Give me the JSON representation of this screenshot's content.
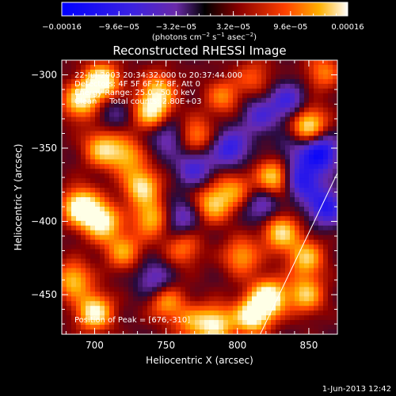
{
  "chart_data": {
    "type": "heatmap",
    "title": "Reconstructed RHESSI Image",
    "xlabel": "Heliocentric X (arcsec)",
    "ylabel": "Heliocentric Y (arcsec)",
    "xlim": [
      677,
      870
    ],
    "ylim": [
      -477,
      -290
    ],
    "x_ticks": [
      {
        "v": 700,
        "label": "700"
      },
      {
        "v": 750,
        "label": "750"
      },
      {
        "v": 800,
        "label": "800"
      },
      {
        "v": 850,
        "label": "850"
      }
    ],
    "y_ticks": [
      {
        "v": -300,
        "label": "−300"
      },
      {
        "v": -350,
        "label": "−350"
      },
      {
        "v": -400,
        "label": "−400"
      },
      {
        "v": -450,
        "label": "−450"
      }
    ],
    "colorbar": {
      "range": [
        -0.00016,
        0.00016
      ],
      "tick_values": [
        -0.00016,
        -9.6e-05,
        -3.2e-05,
        3.2e-05,
        9.6e-05,
        0.00016
      ],
      "tick_labels": [
        "−0.00016",
        "−9.6e−05",
        "−3.2e−05",
        "3.2e−05",
        "9.6e−05",
        "0.00016"
      ],
      "unit_prefix": "(photons cm",
      "unit_exp1": "−2",
      "unit_mid": " s",
      "unit_exp2": "−1",
      "unit_mid2": " asec",
      "unit_exp3": "−2",
      "unit_suffix": ")"
    },
    "annotations": [
      "22-Jul-2003 20:34:32.000 to 20:37:44.000",
      "Detectors: 4F 5F 6F 7F 8F, Att 0",
      "Energy Range: 25.0 - 50.0 keV",
      "Clean     Total counts: 2.80E+03"
    ],
    "peak_label": "Position of Peak = [676,-310]",
    "limb": [
      [
        870,
        -367
      ],
      [
        816,
        -477
      ]
    ],
    "blobs": [
      {
        "x": 705,
        "y": -305,
        "v": 1.0
      },
      {
        "x": 690,
        "y": -318,
        "v": 0.8
      },
      {
        "x": 705,
        "y": -350,
        "v": 0.7
      },
      {
        "x": 690,
        "y": -390,
        "v": 1.0
      },
      {
        "x": 705,
        "y": -400,
        "v": 0.9
      },
      {
        "x": 720,
        "y": -420,
        "v": 0.6
      },
      {
        "x": 685,
        "y": -440,
        "v": 0.7
      },
      {
        "x": 700,
        "y": -462,
        "v": 0.9
      },
      {
        "x": 722,
        "y": -355,
        "v": 0.6
      },
      {
        "x": 740,
        "y": -325,
        "v": 0.8
      },
      {
        "x": 745,
        "y": -310,
        "v": 0.6
      },
      {
        "x": 733,
        "y": -376,
        "v": 0.8
      },
      {
        "x": 740,
        "y": -398,
        "v": 0.7
      },
      {
        "x": 762,
        "y": -418,
        "v": 0.5
      },
      {
        "x": 750,
        "y": -455,
        "v": 0.6
      },
      {
        "x": 768,
        "y": -470,
        "v": 0.5
      },
      {
        "x": 785,
        "y": -470,
        "v": 0.8
      },
      {
        "x": 810,
        "y": -465,
        "v": 0.9
      },
      {
        "x": 822,
        "y": -452,
        "v": 1.0
      },
      {
        "x": 848,
        "y": -450,
        "v": 0.7
      },
      {
        "x": 848,
        "y": -425,
        "v": 0.7
      },
      {
        "x": 783,
        "y": -388,
        "v": 0.7
      },
      {
        "x": 798,
        "y": -378,
        "v": 0.5
      },
      {
        "x": 826,
        "y": -370,
        "v": 0.8
      },
      {
        "x": 830,
        "y": -407,
        "v": 0.8
      },
      {
        "x": 803,
        "y": -424,
        "v": 0.6
      },
      {
        "x": 770,
        "y": -342,
        "v": 0.6
      },
      {
        "x": 790,
        "y": -315,
        "v": 0.5
      },
      {
        "x": 812,
        "y": -302,
        "v": 0.4
      },
      {
        "x": 850,
        "y": -335,
        "v": 0.9
      },
      {
        "x": 860,
        "y": -298,
        "v": 0.5
      },
      {
        "x": 838,
        "y": -352,
        "v": -0.3
      },
      {
        "x": 752,
        "y": -342,
        "v": -0.5
      },
      {
        "x": 770,
        "y": -363,
        "v": -0.6
      },
      {
        "x": 795,
        "y": -350,
        "v": -0.7
      },
      {
        "x": 815,
        "y": -328,
        "v": -0.5
      },
      {
        "x": 835,
        "y": -318,
        "v": -0.6
      },
      {
        "x": 858,
        "y": -353,
        "v": -1.0
      },
      {
        "x": 845,
        "y": -372,
        "v": -0.8
      },
      {
        "x": 862,
        "y": -390,
        "v": -0.8
      },
      {
        "x": 818,
        "y": -390,
        "v": -0.5
      },
      {
        "x": 742,
        "y": -440,
        "v": -0.5
      },
      {
        "x": 760,
        "y": -398,
        "v": -0.5
      },
      {
        "x": 712,
        "y": -325,
        "v": -0.3
      }
    ]
  },
  "footer": {
    "timestamp": "1-Jun-2013 12:42"
  }
}
